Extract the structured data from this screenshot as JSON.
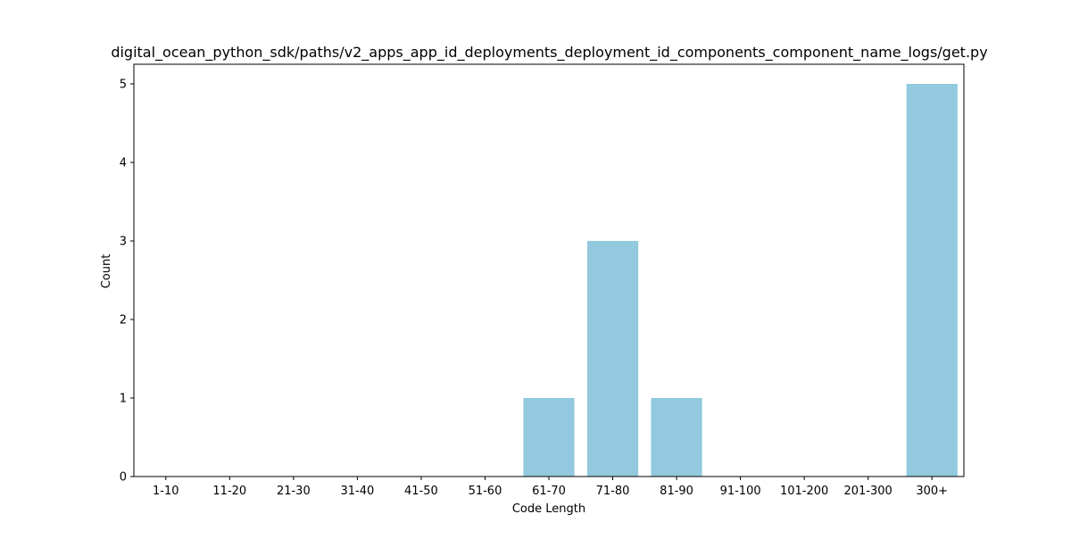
{
  "chart_data": {
    "type": "bar",
    "title": "digital_ocean_python_sdk/paths/v2_apps_app_id_deployments_deployment_id_components_component_name_logs/get.py",
    "xlabel": "Code Length",
    "ylabel": "Count",
    "categories": [
      "1-10",
      "11-20",
      "21-30",
      "31-40",
      "41-50",
      "51-60",
      "61-70",
      "71-80",
      "81-90",
      "91-100",
      "101-200",
      "201-300",
      "300+"
    ],
    "values": [
      0,
      0,
      0,
      0,
      0,
      0,
      1,
      3,
      1,
      0,
      0,
      0,
      5
    ],
    "ylim": [
      0,
      5.25
    ],
    "yticks": [
      0,
      1,
      2,
      3,
      4,
      5
    ],
    "bar_color": "#92c9de",
    "grid": false,
    "legend": "none"
  }
}
